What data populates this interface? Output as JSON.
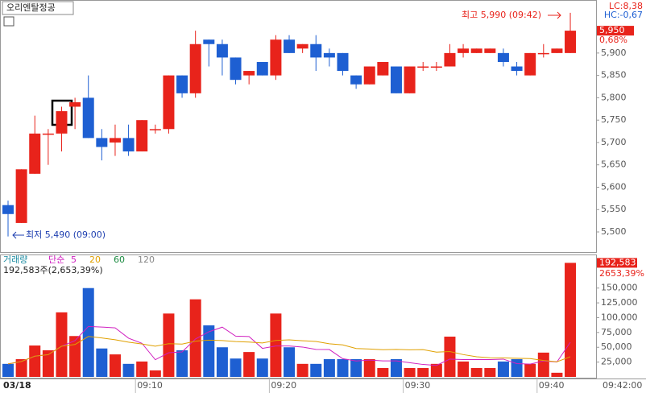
{
  "chart_data": {
    "type": "candlestick",
    "title": "오리엔탈정공",
    "date": "03/18",
    "last_time": "09:42:00",
    "categories": [
      null,
      null,
      null,
      null,
      null,
      null,
      null,
      null,
      null,
      null,
      "09:10",
      null,
      null,
      null,
      null,
      null,
      null,
      null,
      null,
      null,
      "09:20",
      null,
      null,
      null,
      null,
      null,
      null,
      null,
      null,
      null,
      "09:30",
      null,
      null,
      null,
      null,
      null,
      null,
      null,
      null,
      null,
      "09:40",
      null,
      null
    ],
    "open": [
      5560,
      5520,
      5630,
      5720,
      5720,
      5780,
      5800,
      5710,
      5700,
      5710,
      5680,
      5730,
      5730,
      5850,
      5810,
      5930,
      5920,
      5890,
      5850,
      5880,
      5850,
      5930,
      5910,
      5920,
      5900,
      5900,
      5850,
      5830,
      5850,
      5870,
      5810,
      5870,
      5870,
      5870,
      5900,
      5900,
      5900,
      5900,
      5870,
      5850,
      5900,
      5900,
      5900
    ],
    "high": [
      5570,
      5640,
      5760,
      5730,
      5780,
      5800,
      5850,
      5730,
      5740,
      5740,
      5750,
      5740,
      5850,
      5850,
      5950,
      5930,
      5930,
      5890,
      5860,
      5880,
      5940,
      5940,
      5920,
      5940,
      5910,
      5900,
      5850,
      5870,
      5880,
      5870,
      5870,
      5880,
      5880,
      5920,
      5920,
      5910,
      5910,
      5910,
      5880,
      5900,
      5920,
      5910,
      5990
    ],
    "low": [
      5490,
      5520,
      5630,
      5650,
      5680,
      5730,
      5710,
      5660,
      5670,
      5670,
      5680,
      5720,
      5720,
      5800,
      5800,
      5870,
      5850,
      5830,
      5830,
      5850,
      5840,
      5900,
      5900,
      5860,
      5870,
      5850,
      5820,
      5830,
      5850,
      5810,
      5810,
      5860,
      5860,
      5870,
      5890,
      5900,
      5900,
      5870,
      5850,
      5850,
      5890,
      5900,
      5900
    ],
    "close": [
      5540,
      5640,
      5720,
      5720,
      5770,
      5790,
      5710,
      5690,
      5710,
      5680,
      5750,
      5730,
      5850,
      5810,
      5920,
      5920,
      5890,
      5840,
      5860,
      5850,
      5930,
      5900,
      5920,
      5890,
      5890,
      5860,
      5830,
      5870,
      5880,
      5810,
      5870,
      5870,
      5870,
      5900,
      5910,
      5910,
      5910,
      5880,
      5860,
      5900,
      5900,
      5910,
      5950
    ],
    "volume": [
      22000,
      30000,
      53000,
      45000,
      109000,
      69000,
      150000,
      48000,
      38000,
      22000,
      26000,
      11000,
      107000,
      45000,
      131000,
      87000,
      50000,
      31000,
      42000,
      31000,
      107000,
      50000,
      22000,
      22000,
      30000,
      30000,
      30000,
      30000,
      15000,
      30000,
      15000,
      15000,
      22000,
      68000,
      26000,
      15000,
      15000,
      26000,
      30000,
      22000,
      41000,
      7000,
      192583
    ],
    "up_color": "#e8231b",
    "down_color": "#1e5fd2",
    "ylim": [
      5455,
      6015
    ],
    "yticks": [
      {
        "value": 5500,
        "label": "5,500"
      },
      {
        "value": 5550,
        "label": "5,550"
      },
      {
        "value": 5600,
        "label": "5,600"
      },
      {
        "value": 5650,
        "label": "5,650"
      },
      {
        "value": 5700,
        "label": "5,700"
      },
      {
        "value": 5750,
        "label": "5,750"
      },
      {
        "value": 5800,
        "label": "5,800"
      },
      {
        "value": 5850,
        "label": "5,850"
      },
      {
        "value": 5900,
        "label": "5,900"
      }
    ],
    "volume_ylim": [
      0,
      204000
    ],
    "volume_yticks": [
      {
        "value": 25000,
        "label": "25,000"
      },
      {
        "value": 50000,
        "label": "50,000"
      },
      {
        "value": 75000,
        "label": "75,000"
      },
      {
        "value": 100000,
        "label": "100,000"
      },
      {
        "value": 125000,
        "label": "125,000"
      },
      {
        "value": 150000,
        "label": "150,000"
      }
    ],
    "lc": "LC:8,38",
    "hc": "HC:-0,67",
    "last_price": {
      "value": 5950,
      "label": "5,950"
    },
    "change_pct": "0,68%",
    "high_note": "최고 5,990 (09:42)",
    "low_note": "최저 5,490 (09:00)",
    "volume_legend": {
      "name": "거래량",
      "ma": "단순",
      "periods": [
        "5",
        "20",
        "60",
        "120"
      ],
      "period_colors": [
        "#d020c0",
        "#e0a000",
        "#1a8a40",
        "#888888"
      ]
    },
    "volume_info": "192,583주(2,653,39%)",
    "last_volume": {
      "value": 192583,
      "label": "192,583"
    },
    "volume_pct": "2653,39%"
  }
}
